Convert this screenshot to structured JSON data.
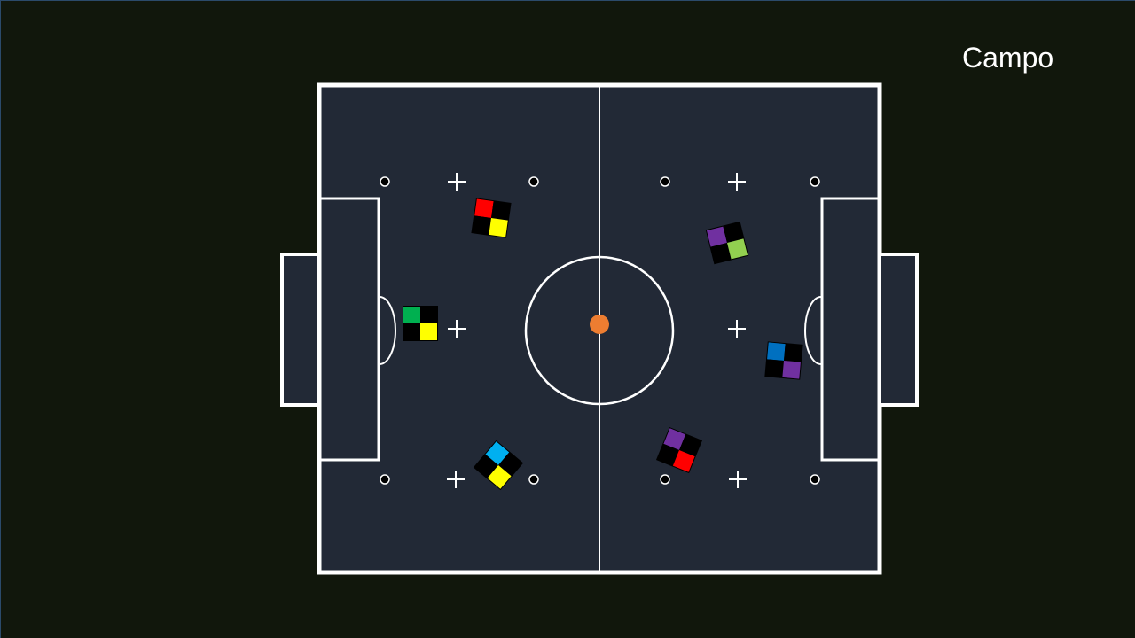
{
  "slide": {
    "title": "Campo"
  },
  "colors": {
    "background": "#11170c",
    "pitch": "#222936",
    "lines": "#ffffff",
    "ball": "#ed7d31",
    "marker_base": "#000000"
  },
  "field": {
    "ball": {
      "color": "#ed7d31"
    },
    "robots": [
      {
        "name": "robot-red-yellow",
        "team": "left",
        "colors": [
          "#ff0000",
          "#000000",
          "#000000",
          "#ffff00"
        ]
      },
      {
        "name": "robot-green-yellow",
        "team": "left",
        "colors": [
          "#00b050",
          "#000000",
          "#000000",
          "#ffff00"
        ]
      },
      {
        "name": "robot-cyan-yellow",
        "team": "left",
        "colors": [
          "#00b0f0",
          "#000000",
          "#000000",
          "#ffff00"
        ]
      },
      {
        "name": "robot-purple-lightgreen",
        "team": "right",
        "colors": [
          "#7030a0",
          "#000000",
          "#000000",
          "#92d050"
        ]
      },
      {
        "name": "robot-blue-purple",
        "team": "right",
        "colors": [
          "#0070c0",
          "#000000",
          "#000000",
          "#7030a0"
        ]
      },
      {
        "name": "robot-purple-red",
        "team": "right",
        "colors": [
          "#7030a0",
          "#000000",
          "#000000",
          "#ff0000"
        ]
      }
    ]
  }
}
